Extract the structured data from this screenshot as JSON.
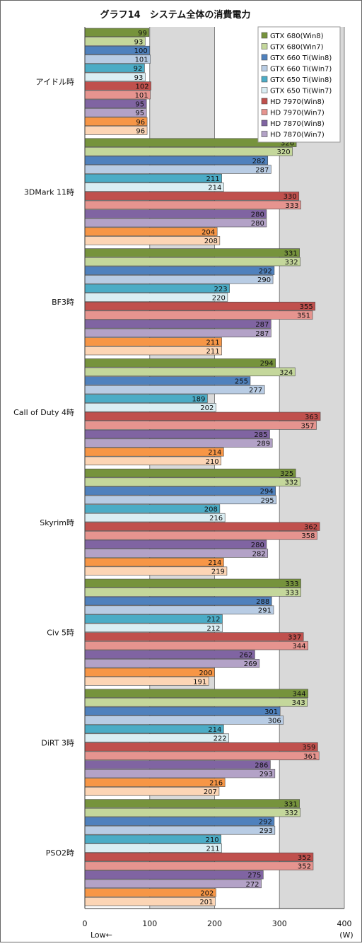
{
  "chart_data": {
    "type": "bar",
    "orientation": "horizontal",
    "title": "グラフ14　システム全体の消費電力",
    "xlim": [
      0,
      400
    ],
    "xticks": [
      0,
      100,
      200,
      300,
      400
    ],
    "unit_label": "(W)",
    "direction_label": "Low←",
    "legend_position": "top-right",
    "grid": true,
    "categories": [
      "アイドル時",
      "3DMark 11時",
      "BF3時",
      "Call of Duty 4時",
      "Skyrim時",
      "Civ 5時",
      "DiRT 3時",
      "PSO2時"
    ],
    "series": [
      {
        "name": "GTX 680(Win8)",
        "color": "#76933c",
        "values": [
          99,
          326,
          331,
          294,
          325,
          333,
          344,
          331
        ]
      },
      {
        "name": "GTX 680(Win7)",
        "color": "#c4d79b",
        "values": [
          93,
          320,
          332,
          324,
          332,
          333,
          343,
          332
        ]
      },
      {
        "name": "GTX 660 Ti(Win8)",
        "color": "#4f81bd",
        "values": [
          100,
          282,
          292,
          255,
          294,
          288,
          301,
          292
        ]
      },
      {
        "name": "GTX 660 Ti(Win7)",
        "color": "#b8cce4",
        "values": [
          101,
          287,
          290,
          277,
          295,
          291,
          306,
          293
        ]
      },
      {
        "name": "GTX 650 Ti(Win8)",
        "color": "#4bacc6",
        "values": [
          92,
          211,
          223,
          189,
          208,
          212,
          214,
          210
        ]
      },
      {
        "name": "GTX 650 Ti(Win7)",
        "color": "#daeef3",
        "values": [
          93,
          214,
          220,
          202,
          216,
          212,
          222,
          211
        ]
      },
      {
        "name": "HD 7970(Win8)",
        "color": "#c0504d",
        "values": [
          102,
          330,
          355,
          363,
          362,
          337,
          359,
          352
        ]
      },
      {
        "name": "HD 7970(Win7)",
        "color": "#e6948f",
        "values": [
          101,
          333,
          351,
          357,
          358,
          344,
          361,
          352
        ]
      },
      {
        "name": "HD 7870(Win8)",
        "color": "#8064a2",
        "values": [
          95,
          280,
          287,
          285,
          280,
          262,
          286,
          275
        ]
      },
      {
        "name": "HD 7870(Win7)",
        "color": "#b3a2c7",
        "values": [
          95,
          280,
          287,
          289,
          282,
          269,
          293,
          272
        ]
      },
      {
        "name": "",
        "color": "#f79646",
        "values": [
          96,
          204,
          211,
          214,
          214,
          200,
          216,
          202
        ]
      },
      {
        "name": "",
        "color": "#fcd5b5",
        "values": [
          96,
          208,
          211,
          210,
          219,
          191,
          207,
          201
        ]
      }
    ]
  }
}
